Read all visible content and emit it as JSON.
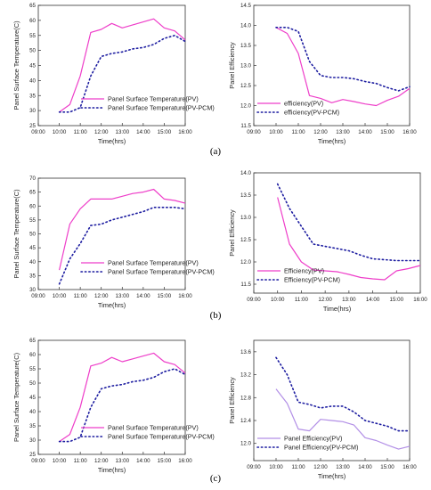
{
  "chart_data": [
    {
      "type": "line",
      "title": "",
      "xlabel": "Time(hrs)",
      "ylabel": "Panel Surface Temperature(C)",
      "ylim": [
        25,
        65
      ],
      "yticks": [
        "25",
        "30",
        "35",
        "40",
        "45",
        "50",
        "55",
        "60",
        "65"
      ],
      "xticks": [
        "09:00",
        "10:00",
        "11:00",
        "12:00",
        "13:00",
        "14:00",
        "15:00",
        "16:00"
      ],
      "xlim": [
        "09:00",
        "16:00"
      ],
      "legend": "bottom-right",
      "x": [
        "10:00",
        "10:30",
        "11:00",
        "11:30",
        "12:00",
        "12:30",
        "13:00",
        "13:30",
        "14:00",
        "14:30",
        "15:00",
        "15:30",
        "16:00"
      ],
      "series": [
        {
          "name": "Panel Surface Temperature(PV)",
          "style": "solid",
          "color": "#ee3ec9",
          "values": [
            29.5,
            32,
            41.5,
            56,
            57,
            59,
            57.5,
            58.5,
            59.5,
            60.5,
            57.5,
            56.5,
            53.5
          ]
        },
        {
          "name": "Panel Surface Temperature(PV-PCM)",
          "style": "dotted",
          "color": "#1c1ca0",
          "values": [
            29.5,
            29.5,
            31,
            41.5,
            48,
            49,
            49.5,
            50.5,
            51,
            52,
            54,
            55,
            53
          ]
        }
      ]
    },
    {
      "type": "line",
      "title": "",
      "xlabel": "Time(hrs)",
      "ylabel": "Panel Efficiency",
      "ylim": [
        11.5,
        14.5
      ],
      "yticks": [
        "11.5",
        "12.0",
        "12.5",
        "13.0",
        "13.5",
        "14.0",
        "14.5"
      ],
      "xticks": [
        "09:00",
        "10:00",
        "11:00",
        "12:00",
        "13:00",
        "14:00",
        "15:00",
        "16:00"
      ],
      "xlim": [
        "09:00",
        "16:00"
      ],
      "legend": "bottom-left",
      "x": [
        "10:00",
        "10:30",
        "11:00",
        "11:30",
        "12:00",
        "12:30",
        "13:00",
        "13:30",
        "14:00",
        "14:30",
        "15:00",
        "15:30",
        "16:00"
      ],
      "series": [
        {
          "name": "efficiency(PV)",
          "style": "solid",
          "color": "#ee3ec9",
          "values": [
            13.95,
            13.8,
            13.3,
            12.25,
            12.18,
            12.07,
            12.15,
            12.1,
            12.04,
            12.0,
            12.13,
            12.23,
            12.43
          ]
        },
        {
          "name": "efficiency(PV-PCM)",
          "style": "dotted",
          "color": "#1c1ca0",
          "values": [
            13.95,
            13.95,
            13.85,
            13.1,
            12.75,
            12.7,
            12.7,
            12.67,
            12.6,
            12.55,
            12.45,
            12.37,
            12.47
          ]
        }
      ]
    },
    {
      "type": "line",
      "title": "",
      "xlabel": "Time(hrs)",
      "ylabel": "Panel Surface Temperature(C)",
      "ylim": [
        30,
        70
      ],
      "yticks": [
        "30",
        "35",
        "40",
        "45",
        "50",
        "55",
        "60",
        "65",
        "70"
      ],
      "xticks": [
        "09:00",
        "10:00",
        "11:00",
        "12:00",
        "13:00",
        "14:00",
        "15:00",
        "16:00"
      ],
      "xlim": [
        "09:00",
        "16:00"
      ],
      "legend": "bottom-right",
      "x": [
        "10:00",
        "10:30",
        "11:00",
        "11:30",
        "12:00",
        "12:30",
        "13:00",
        "13:30",
        "14:00",
        "14:30",
        "15:00",
        "15:30",
        "16:00"
      ],
      "series": [
        {
          "name": "Panel Surface Temperature(PV)",
          "style": "solid",
          "color": "#ee3ec9",
          "values": [
            37,
            53.5,
            59,
            62.5,
            62.5,
            62.5,
            63.5,
            64.5,
            65,
            66,
            62.5,
            62,
            61
          ]
        },
        {
          "name": "Panel Surface Temperature(PV-PCM)",
          "style": "dotted",
          "color": "#1c1ca0",
          "values": [
            32,
            41,
            46.5,
            53,
            53.5,
            55,
            56,
            57,
            58,
            59.5,
            59.5,
            59.5,
            59
          ]
        }
      ]
    },
    {
      "type": "line",
      "title": "",
      "xlabel": "Time(hrs)",
      "ylabel": "Panel Efficiency",
      "ylim": [
        11.3,
        14.0
      ],
      "yticks": [
        "11.5",
        "12.0",
        "12.5",
        "13.0",
        "13.5",
        "14.0"
      ],
      "xticks": [
        "09:00",
        "10:00",
        "11:00",
        "12:00",
        "13:00",
        "14:00",
        "15:00",
        "16:00"
      ],
      "xlim": [
        "09:00",
        "16:00"
      ],
      "legend": "bottom-left",
      "x": [
        "10:00",
        "10:30",
        "11:00",
        "11:30",
        "12:00",
        "12:30",
        "13:00",
        "13:30",
        "14:00",
        "14:30",
        "15:00",
        "15:30",
        "16:00"
      ],
      "series": [
        {
          "name": "Efficiency(PV)",
          "style": "solid",
          "color": "#ee3ec9",
          "values": [
            13.45,
            12.4,
            12.0,
            11.82,
            11.8,
            11.78,
            11.72,
            11.65,
            11.62,
            11.6,
            11.8,
            11.85,
            11.92
          ]
        },
        {
          "name": "Efficiency(PV-PCM)",
          "style": "dotted",
          "color": "#1c1ca0",
          "values": [
            13.75,
            13.2,
            12.8,
            12.4,
            12.35,
            12.3,
            12.25,
            12.15,
            12.07,
            12.05,
            12.03,
            12.03,
            12.03
          ]
        }
      ]
    },
    {
      "type": "line",
      "title": "",
      "xlabel": "Time(hrs)",
      "ylabel": "Panel Surface Temperature(C)",
      "ylim": [
        25,
        65
      ],
      "yticks": [
        "25",
        "30",
        "35",
        "40",
        "45",
        "50",
        "55",
        "60",
        "65"
      ],
      "xticks": [
        "09:00",
        "10:00",
        "11:00",
        "12:00",
        "13:00",
        "14:00",
        "15:00",
        "16:00"
      ],
      "xlim": [
        "09:00",
        "16:00"
      ],
      "legend": "bottom-right",
      "x": [
        "10:00",
        "10:30",
        "11:00",
        "11:30",
        "12:00",
        "12:30",
        "13:00",
        "13:30",
        "14:00",
        "14:30",
        "15:00",
        "15:30",
        "16:00"
      ],
      "series": [
        {
          "name": "Panel Surface Temperature(PV)",
          "style": "solid",
          "color": "#ee3ec9",
          "values": [
            29.5,
            32,
            41.5,
            56,
            57,
            59,
            57.5,
            58.5,
            59.5,
            60.5,
            57.5,
            56.5,
            53.5
          ]
        },
        {
          "name": "Panel Surface Temperature(PV-PCM)",
          "style": "dotted",
          "color": "#1c1ca0",
          "values": [
            29.5,
            29.5,
            31,
            41.5,
            48,
            49,
            49.5,
            50.5,
            51,
            52,
            54,
            55,
            53
          ]
        }
      ]
    },
    {
      "type": "line",
      "title": "",
      "xlabel": "Time(hrs)",
      "ylabel": "Panel Efficiency",
      "ylim": [
        11.7,
        13.8
      ],
      "yticks": [
        "12.0",
        "12.4",
        "12.8",
        "13.2",
        "13.6"
      ],
      "xticks": [
        "09:00",
        "10:00",
        "11:00",
        "12:00",
        "13:00",
        "14:00",
        "15:00",
        "16:00"
      ],
      "xlim": [
        "09:00",
        "16:00"
      ],
      "legend": "bottom-left",
      "x": [
        "10:00",
        "10:30",
        "11:00",
        "11:30",
        "12:00",
        "12:30",
        "13:00",
        "13:30",
        "14:00",
        "14:30",
        "15:00",
        "15:30",
        "16:00"
      ],
      "series": [
        {
          "name": "Panel Efficiency(PV)",
          "style": "solid",
          "color": "#b28fe6",
          "values": [
            12.95,
            12.7,
            12.25,
            12.22,
            12.42,
            12.4,
            12.38,
            12.32,
            12.1,
            12.05,
            11.97,
            11.9,
            11.95
          ]
        },
        {
          "name": "Panel Efficiency(PV-PCM)",
          "style": "dotted",
          "color": "#1c1ca0",
          "values": [
            13.5,
            13.2,
            12.72,
            12.68,
            12.62,
            12.65,
            12.65,
            12.55,
            12.4,
            12.35,
            12.3,
            12.22,
            12.22
          ]
        }
      ]
    }
  ],
  "panel_labels": [
    "(a)",
    "(b)",
    "(c)"
  ]
}
